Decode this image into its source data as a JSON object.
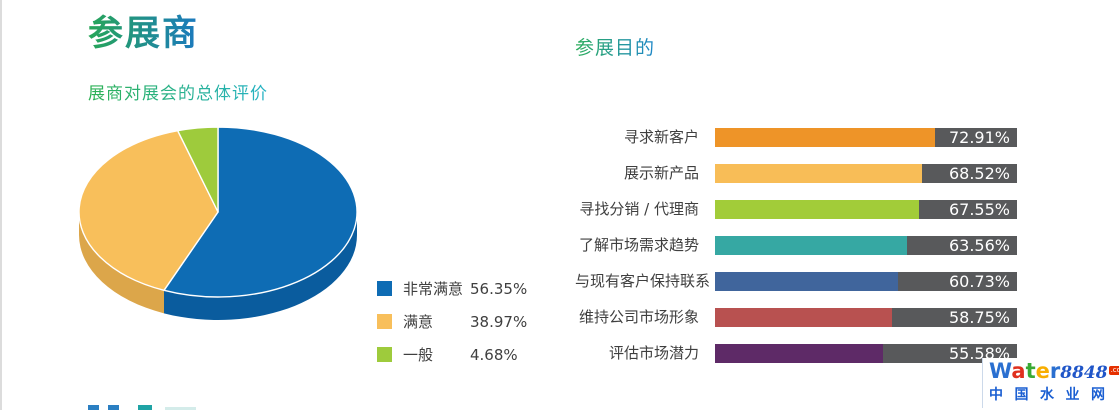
{
  "left_section": {
    "title": "参展商",
    "subtitle": "展商对展会的总体评价"
  },
  "right_section": {
    "title": "参展目的"
  },
  "chart_data": [
    {
      "type": "pie",
      "title": "展商对展会的总体评价",
      "style": "3d",
      "start_angle": 0,
      "direction": "clockwise",
      "legend_position": "right-bottom",
      "labels": [
        "非常满意",
        "满意",
        "一般"
      ],
      "values": [
        56.35,
        38.97,
        4.68
      ],
      "value_labels": [
        "56.35%",
        "38.97%",
        "4.68%"
      ],
      "colors": [
        "#0e6cb4",
        "#f8bf5b",
        "#9ecb3c"
      ],
      "side_colors": [
        "#0a5c9e",
        "#dca64a",
        "#86b32e"
      ]
    },
    {
      "type": "bar",
      "orientation": "horizontal",
      "title": "参展目的",
      "categories": [
        "寻求新客户",
        "展示新产品",
        "寻找分销 / 代理商",
        "了解市场需求趋势",
        "与现有客户保持联系",
        "维持公司市场形象",
        "评估市场潜力"
      ],
      "values": [
        72.91,
        68.52,
        67.55,
        63.56,
        60.73,
        58.75,
        55.58
      ],
      "value_labels": [
        "72.91%",
        "68.52%",
        "67.55%",
        "63.56%",
        "60.73%",
        "58.75%",
        "55.58%"
      ],
      "bar_colors": [
        "#ee9428",
        "#f8bd57",
        "#a2cc39",
        "#36a8a3",
        "#40659c",
        "#b85150",
        "#5e2a67"
      ],
      "track_color": "#58595b",
      "value_label_color": "#ffffff",
      "xlim": [
        0,
        100
      ],
      "grid": false
    }
  ],
  "logo": {
    "brand_letters": [
      {
        "ch": "W",
        "color": "#2a6fd0"
      },
      {
        "ch": "a",
        "color": "#e0301e"
      },
      {
        "ch": "t",
        "color": "#3aaa35"
      },
      {
        "ch": "e",
        "color": "#f8ae00"
      },
      {
        "ch": "r",
        "color": "#2a6fd0"
      }
    ],
    "brand_number": "8848",
    "brand_tld": ".com",
    "tagline": "中国水业网"
  },
  "colors": {
    "title_gradient": [
      "#27a657",
      "#1b79c0"
    ],
    "subtitle_gradient": [
      "#2db153",
      "#25b2c6"
    ],
    "right_title_gradient": [
      "#2dae5b",
      "#1e87c9"
    ],
    "body_text": "#3f3f3f",
    "cutoff_marks": [
      "#2b7fc2",
      "#2b7fc2",
      "#1fa3a5",
      "#d4ecea"
    ]
  }
}
